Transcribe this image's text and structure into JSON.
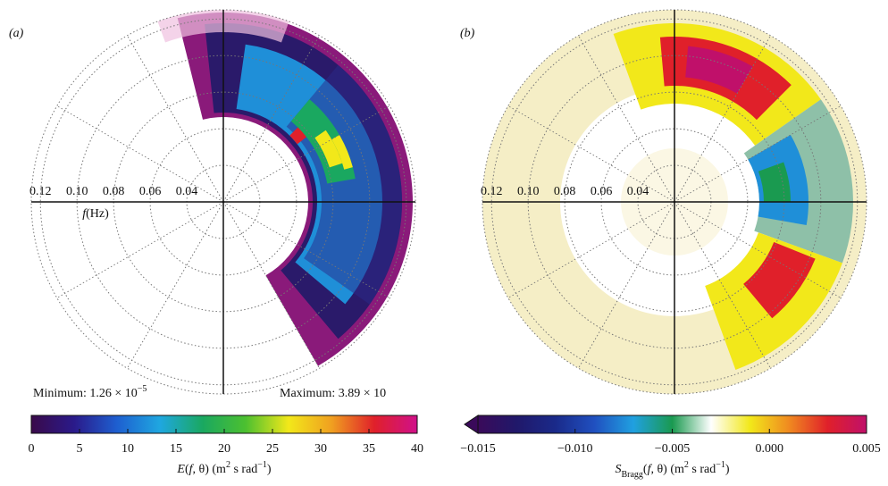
{
  "chart_data": [
    {
      "type": "polar",
      "panel_label": "(a)",
      "rlim": [
        0.02,
        0.125
      ],
      "rticks": [
        0.12,
        {
          "value": 0.1,
          "label": "0.10"
        },
        0.08,
        0.06,
        0.04
      ],
      "r_axis_label_parts": [
        "f",
        "(Hz)"
      ],
      "annotations": {
        "minimum_parts": [
          "Minimum: 1.26 × 10",
          "−5"
        ],
        "maximum_parts": [
          "Maximum: 3.89 × 10"
        ]
      },
      "colorbar": {
        "xlim": [
          0,
          40
        ],
        "xticks": [
          0,
          5,
          10,
          15,
          20,
          25,
          30,
          35,
          40
        ],
        "colors": [
          "#3a0a4a",
          "#2a1a8a",
          "#1e5fd0",
          "#1fa7e0",
          "#1aa860",
          "#4cc030",
          "#f2e81a",
          "#f0a020",
          "#e0202a",
          "#d0108a"
        ],
        "label_parts": [
          "E",
          "(",
          "f",
          ", θ) (m",
          "2",
          " s rad",
          "−1",
          ")"
        ]
      }
    },
    {
      "type": "polar",
      "panel_label": "(b)",
      "rlim": [
        0.02,
        0.125
      ],
      "rticks": [
        0.12,
        {
          "value": 0.1,
          "label": "0.10"
        },
        0.08,
        0.06,
        0.04
      ],
      "colorbar": {
        "xlim": [
          -0.015,
          0.005
        ],
        "xticks": [
          {
            "value": -0.015,
            "label": "−0.015"
          },
          {
            "value": -0.01,
            "label": "−0.010"
          },
          {
            "value": -0.005,
            "label": "−0.005"
          },
          {
            "value": 0,
            "label": "0.000"
          },
          0.005
        ],
        "colors": [
          "#3a0a5a",
          "#20186a",
          "#1a2a8a",
          "#2050c0",
          "#20a0e0",
          "#1a9a50",
          "#ffffff",
          "#f2e81a",
          "#f08a20",
          "#e0202a",
          "#c0106a"
        ],
        "label_parts": [
          "S",
          "Bragg",
          "(",
          "f",
          ", θ) (m",
          "2",
          " s rad",
          "−1",
          ")"
        ]
      }
    }
  ]
}
